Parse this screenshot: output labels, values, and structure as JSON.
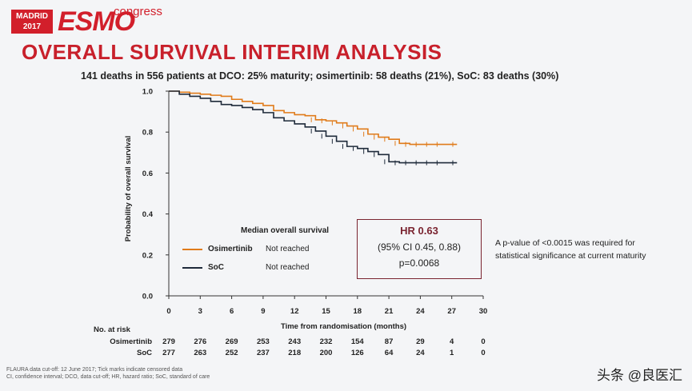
{
  "logo": {
    "badge_line1": "MADRID",
    "badge_line2": "2017",
    "brand": "ESMO",
    "tag": "congress"
  },
  "title": "OVERALL SURVIVAL INTERIM ANALYSIS",
  "subtitle": "141 deaths in 556 patients at DCO: 25% maturity; osimertinib: 58 deaths (21%), SoC: 83 deaths (30%)",
  "hr_box": {
    "hr": "HR 0.63",
    "ci": "(95% CI 0.45, 0.88)",
    "p": "p=0.0068"
  },
  "annotation": {
    "line1": "A p-value of <0.0015 was required for",
    "line2": "statistical significance at current maturity"
  },
  "legend": {
    "title": "Median overall survival",
    "items": [
      {
        "name": "Osimertinib",
        "value": "Not reached",
        "color": "#e07b1a"
      },
      {
        "name": "SoC",
        "value": "Not reached",
        "color": "#1e2a3a"
      }
    ]
  },
  "risk_table": {
    "header": "No. at risk",
    "rows": [
      {
        "label": "Osimertinib",
        "values": [
          "279",
          "276",
          "269",
          "253",
          "243",
          "232",
          "154",
          "87",
          "29",
          "4",
          "0"
        ]
      },
      {
        "label": "SoC",
        "values": [
          "277",
          "263",
          "252",
          "237",
          "218",
          "200",
          "126",
          "64",
          "24",
          "1",
          "0"
        ]
      }
    ]
  },
  "footnotes": {
    "line1": "FLAURA data cut-off: 12 June 2017; Tick marks indicate censored data",
    "line2": "CI, confidence interval; DCO, data cut-off; HR, hazard ratio; SoC, standard of care"
  },
  "watermark": "头条 @良医汇",
  "chart_data": {
    "type": "line",
    "title": "",
    "xlabel": "Time from randomisation (months)",
    "ylabel": "Probability of overall survival",
    "xlim": [
      0,
      30
    ],
    "ylim": [
      0,
      1.0
    ],
    "x_ticks": [
      0,
      3,
      6,
      9,
      12,
      15,
      18,
      21,
      24,
      27,
      30
    ],
    "y_ticks": [
      0.0,
      0.2,
      0.4,
      0.6,
      0.8,
      1.0
    ],
    "y_tick_labels": [
      "0.0",
      "0.2",
      "0.4",
      "0.6",
      "0.8",
      "1.0"
    ],
    "series": [
      {
        "name": "Osimertinib",
        "color": "#e07b1a",
        "x": [
          0,
          1,
          2,
          3,
          4,
          5,
          6,
          7,
          8,
          9,
          10,
          11,
          12,
          13,
          14,
          15,
          16,
          17,
          18,
          19,
          20,
          21,
          22,
          23,
          24,
          25,
          26,
          27.5
        ],
        "y": [
          1.0,
          0.995,
          0.99,
          0.985,
          0.98,
          0.975,
          0.96,
          0.95,
          0.94,
          0.93,
          0.905,
          0.895,
          0.885,
          0.88,
          0.86,
          0.855,
          0.845,
          0.83,
          0.815,
          0.79,
          0.775,
          0.765,
          0.745,
          0.74,
          0.74,
          0.74,
          0.74,
          0.74
        ]
      },
      {
        "name": "SoC",
        "color": "#1e2a3a",
        "x": [
          0,
          1,
          2,
          3,
          4,
          5,
          6,
          7,
          8,
          9,
          10,
          11,
          12,
          13,
          14,
          15,
          16,
          17,
          18,
          19,
          20,
          21,
          22,
          23,
          24,
          25,
          26,
          27.5
        ],
        "y": [
          1.0,
          0.985,
          0.975,
          0.965,
          0.95,
          0.935,
          0.93,
          0.92,
          0.91,
          0.895,
          0.87,
          0.855,
          0.84,
          0.825,
          0.805,
          0.78,
          0.755,
          0.73,
          0.72,
          0.705,
          0.69,
          0.655,
          0.65,
          0.65,
          0.65,
          0.65,
          0.65,
          0.65
        ]
      }
    ]
  }
}
